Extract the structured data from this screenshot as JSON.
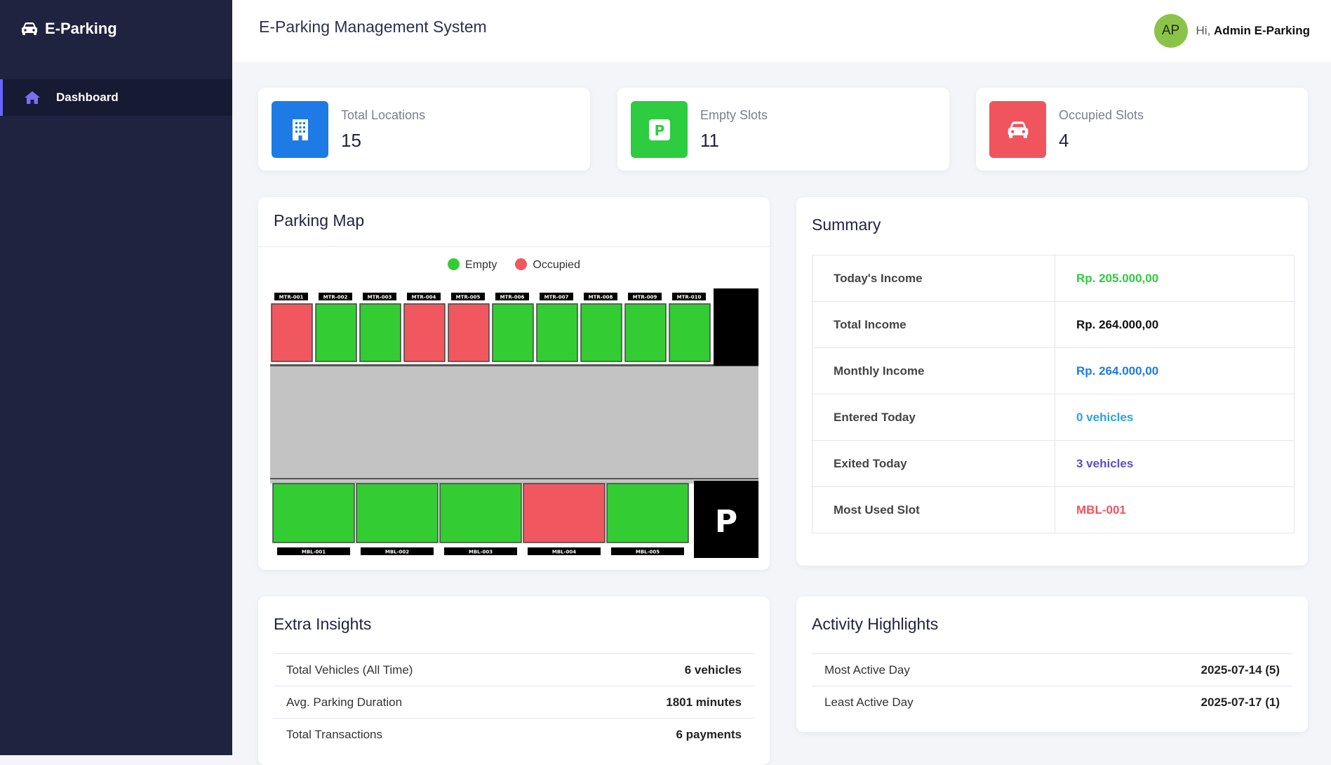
{
  "sidebar": {
    "brand": "E-Parking",
    "items": [
      {
        "label": "Dashboard",
        "icon": "home-icon"
      }
    ]
  },
  "header": {
    "title": "E-Parking Management System",
    "avatar_initials": "AP",
    "greeting": "Hi,",
    "user_name": "Admin E-Parking"
  },
  "stats": [
    {
      "label": "Total Locations",
      "value": "15",
      "icon": "building-icon",
      "color": "#1e7be6"
    },
    {
      "label": "Empty Slots",
      "value": "11",
      "icon": "parking-icon",
      "color": "#2ecc40"
    },
    {
      "label": "Occupied Slots",
      "value": "4",
      "icon": "car-icon",
      "color": "#f0545d"
    }
  ],
  "parking_map": {
    "title": "Parking Map",
    "legend": [
      {
        "label": "Empty",
        "color": "#33cc33"
      },
      {
        "label": "Occupied",
        "color": "#f0575f"
      }
    ],
    "top_slots": [
      {
        "id": "MTR-001",
        "status": "occupied"
      },
      {
        "id": "MTR-002",
        "status": "empty"
      },
      {
        "id": "MTR-003",
        "status": "empty"
      },
      {
        "id": "MTR-004",
        "status": "occupied"
      },
      {
        "id": "MTR-005",
        "status": "occupied"
      },
      {
        "id": "MTR-006",
        "status": "empty"
      },
      {
        "id": "MTR-007",
        "status": "empty"
      },
      {
        "id": "MTR-008",
        "status": "empty"
      },
      {
        "id": "MTR-009",
        "status": "empty"
      },
      {
        "id": "MTR-010",
        "status": "empty"
      }
    ],
    "bottom_slots": [
      {
        "id": "MBL-001",
        "status": "empty"
      },
      {
        "id": "MBL-002",
        "status": "empty"
      },
      {
        "id": "MBL-003",
        "status": "empty"
      },
      {
        "id": "MBL-004",
        "status": "occupied"
      },
      {
        "id": "MBL-005",
        "status": "empty"
      }
    ],
    "parking_sign": "P"
  },
  "summary": {
    "title": "Summary",
    "rows": [
      {
        "label": "Today's Income",
        "value": "Rp. 205.000,00",
        "color": "#2ecc40"
      },
      {
        "label": "Total Income",
        "value": "Rp. 264.000,00",
        "color": "#111111"
      },
      {
        "label": "Monthly Income",
        "value": "Rp. 264.000,00",
        "color": "#1e7be6"
      },
      {
        "label": "Entered Today",
        "value": "0 vehicles",
        "color": "#29a3e0"
      },
      {
        "label": "Exited Today",
        "value": "3 vehicles",
        "color": "#5a4fc4"
      },
      {
        "label": "Most Used Slot",
        "value": "MBL-001",
        "color": "#f0545d"
      }
    ]
  },
  "extra_insights": {
    "title": "Extra Insights",
    "rows": [
      {
        "label": "Total Vehicles (All Time)",
        "value": "6 vehicles"
      },
      {
        "label": "Avg. Parking Duration",
        "value": "1801 minutes"
      },
      {
        "label": "Total Transactions",
        "value": "6 payments"
      }
    ]
  },
  "activity_highlights": {
    "title": "Activity Highlights",
    "rows": [
      {
        "label": "Most Active Day",
        "value": "2025-07-14 (5)"
      },
      {
        "label": "Least Active Day",
        "value": "2025-07-17 (1)"
      }
    ]
  }
}
